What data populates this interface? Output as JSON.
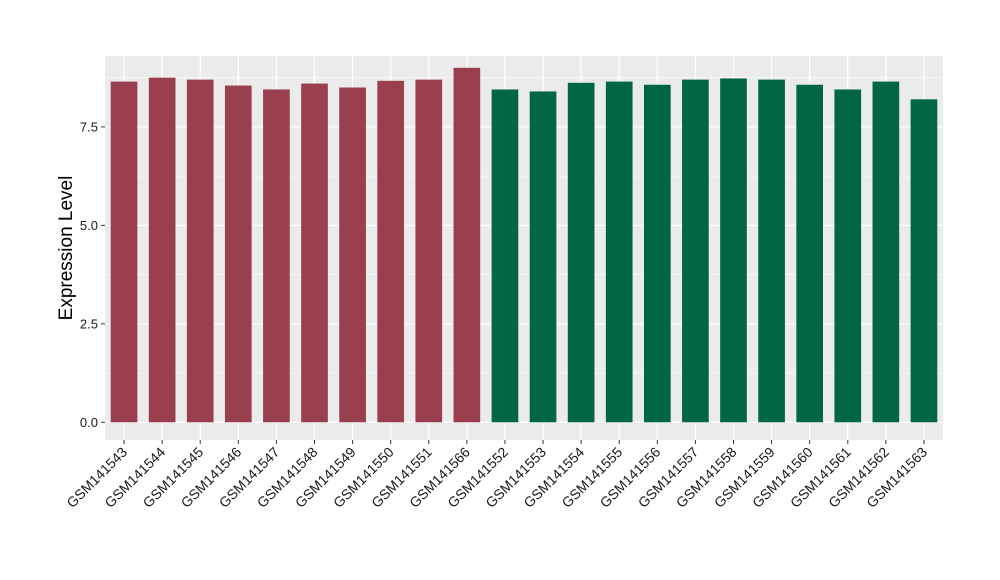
{
  "chart_data": {
    "type": "bar",
    "ylabel": "Expression Level",
    "xlabel": "",
    "ylim": [
      -0.45,
      9.3
    ],
    "yticks": [
      0.0,
      2.5,
      5.0,
      7.5
    ],
    "ytick_labels": [
      "0.0",
      "2.5",
      "5.0",
      "7.5"
    ],
    "grid": true,
    "colors": {
      "group1": "#9a3f4e",
      "group2": "#016644",
      "panel_bg": "#ebebeb",
      "grid": "#ffffff"
    },
    "categories": [
      "GSM141543",
      "GSM141544",
      "GSM141545",
      "GSM141546",
      "GSM141547",
      "GSM141548",
      "GSM141549",
      "GSM141550",
      "GSM141551",
      "GSM141566",
      "GSM141552",
      "GSM141553",
      "GSM141554",
      "GSM141555",
      "GSM141556",
      "GSM141557",
      "GSM141558",
      "GSM141559",
      "GSM141560",
      "GSM141561",
      "GSM141562",
      "GSM141563"
    ],
    "values": [
      8.65,
      8.75,
      8.7,
      8.55,
      8.45,
      8.6,
      8.5,
      8.67,
      8.7,
      9.0,
      8.45,
      8.4,
      8.62,
      8.65,
      8.57,
      8.7,
      8.73,
      8.7,
      8.57,
      8.45,
      8.65,
      8.2
    ],
    "groups": [
      1,
      1,
      1,
      1,
      1,
      1,
      1,
      1,
      1,
      1,
      2,
      2,
      2,
      2,
      2,
      2,
      2,
      2,
      2,
      2,
      2,
      2
    ]
  }
}
